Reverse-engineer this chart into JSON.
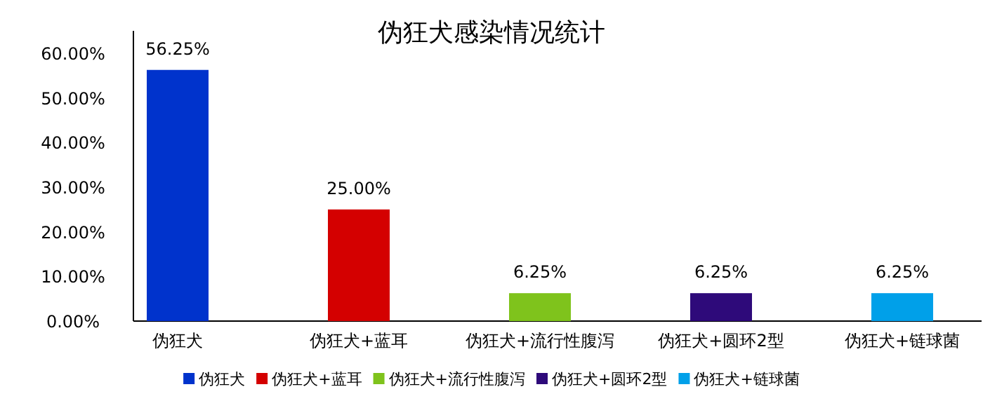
{
  "chart_data": {
    "type": "bar",
    "title": "伪狂犬感染情况统计",
    "categories": [
      "伪狂犬",
      "伪狂犬+蓝耳",
      "伪狂犬+流行性腹泻",
      "伪狂犬+圆环2型",
      "伪狂犬+链球菌"
    ],
    "series": [
      {
        "name": "伪狂犬",
        "color": "#0033cc",
        "values": [
          56.25,
          null,
          null,
          null,
          null
        ],
        "value_labels": [
          "56.25%",
          null,
          null,
          null,
          null
        ]
      },
      {
        "name": "伪狂犬+蓝耳",
        "color": "#d40000",
        "values": [
          null,
          25,
          null,
          null,
          null
        ],
        "value_labels": [
          null,
          "25.00%",
          null,
          null,
          null
        ]
      },
      {
        "name": "伪狂犬+流行性腹泻",
        "color": "#7fc31c",
        "values": [
          null,
          null,
          6.25,
          null,
          null
        ],
        "value_labels": [
          null,
          null,
          "6.25%",
          null,
          null
        ]
      },
      {
        "name": "伪狂犬+圆环2型",
        "color": "#2e0a7a",
        "values": [
          null,
          null,
          null,
          6.25,
          null
        ],
        "value_labels": [
          null,
          null,
          null,
          "6.25%",
          null
        ]
      },
      {
        "name": "伪狂犬+链球菌",
        "color": "#00a0e9",
        "values": [
          null,
          null,
          null,
          null,
          6.25
        ],
        "value_labels": [
          null,
          null,
          null,
          null,
          "6.25%"
        ]
      }
    ],
    "ylim": [
      0,
      65
    ],
    "yticks": [
      {
        "value": 0,
        "label": "0.00%"
      },
      {
        "value": 10,
        "label": "10.00%"
      },
      {
        "value": 20,
        "label": "20.00%"
      },
      {
        "value": 30,
        "label": "30.00%"
      },
      {
        "value": 40,
        "label": "40.00%"
      },
      {
        "value": 50,
        "label": "50.00%"
      },
      {
        "value": 60,
        "label": "60.00%"
      }
    ],
    "legend": "bottom"
  }
}
